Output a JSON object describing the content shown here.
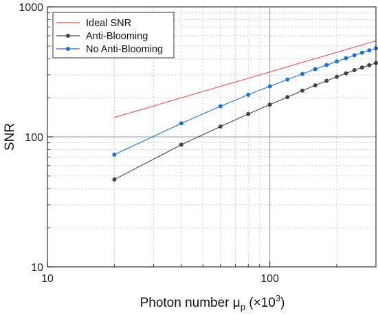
{
  "chart_data": {
    "type": "line",
    "xlabel": "Photon number μ",
    "xlabel_sub": "p",
    "xlabel_suffix": " (×10",
    "xlabel_sup": "3",
    "xlabel_close": ")",
    "ylabel": "SNR",
    "x_scale": "log",
    "y_scale": "log",
    "xlim": [
      10,
      300
    ],
    "ylim": [
      10,
      1000
    ],
    "x_ticks": [
      10,
      100
    ],
    "x_tick_labels": [
      "10",
      "100"
    ],
    "y_ticks": [
      10,
      100,
      1000
    ],
    "y_tick_labels": [
      "10",
      "100",
      "1000"
    ],
    "grid": true,
    "legend_position": "top-left",
    "series": [
      {
        "name": "Ideal SNR",
        "color": "#e8504f",
        "marker": "none",
        "x": [
          20,
          300
        ],
        "y": [
          141,
          548
        ]
      },
      {
        "name": "Anti-Blooming",
        "color": "#444444",
        "marker": "circle",
        "x": [
          20,
          40,
          60,
          80,
          100,
          120,
          140,
          160,
          180,
          200,
          220,
          240,
          260,
          280,
          300
        ],
        "y": [
          47,
          87,
          120,
          150,
          177,
          202,
          227,
          249,
          270,
          290,
          308,
          326,
          342,
          356,
          370
        ]
      },
      {
        "name": "No Anti-Blooming",
        "color": "#1f6fd1",
        "marker": "circle",
        "x": [
          20,
          40,
          60,
          80,
          100,
          120,
          140,
          160,
          180,
          200,
          220,
          240,
          260,
          280,
          300
        ],
        "y": [
          73,
          127,
          172,
          211,
          245,
          276,
          305,
          332,
          357,
          380,
          403,
          424,
          444,
          463,
          481
        ]
      }
    ]
  }
}
